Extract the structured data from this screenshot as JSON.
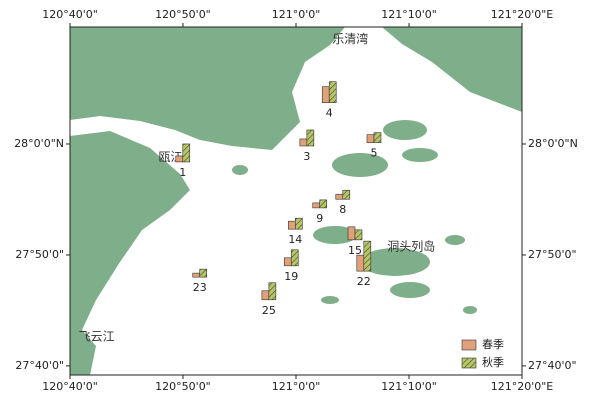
{
  "map": {
    "xlim": [
      120.6667,
      121.3333
    ],
    "ylim": [
      27.653,
      28.1757
    ],
    "xticks": [
      {
        "value": 120.6667,
        "label": "120°40'0\""
      },
      {
        "value": 120.8333,
        "label": "120°50'0\""
      },
      {
        "value": 121.0,
        "label": "121°0'0\""
      },
      {
        "value": 121.1667,
        "label": "121°10'0\""
      },
      {
        "value": 121.3333,
        "label": "121°20'0\"E"
      }
    ],
    "yticks": [
      {
        "value": 28.0,
        "label": "28°0'0\"N"
      },
      {
        "value": 27.8333,
        "label": "27°50'0\""
      },
      {
        "value": 27.6667,
        "label": "27°40'0\""
      }
    ],
    "place_names": [
      {
        "label": "乐清湾",
        "lon": 121.08,
        "lat": 28.157
      },
      {
        "label": "瓯江",
        "lon": 120.815,
        "lat": 27.98
      },
      {
        "label": "洞头列岛",
        "lon": 121.17,
        "lat": 27.845
      },
      {
        "label": "飞云江",
        "lon": 120.706,
        "lat": 27.71
      }
    ],
    "series": [
      {
        "name": "春季",
        "color": "#e0a07a"
      },
      {
        "name": "秋季",
        "color": "#b9c46a"
      }
    ],
    "stations": [
      {
        "label": "1",
        "lon": 120.833,
        "lat": 27.973,
        "values": [
          6,
          18
        ]
      },
      {
        "label": "3",
        "lon": 121.016,
        "lat": 27.997,
        "values": [
          7,
          16
        ]
      },
      {
        "label": "4",
        "lon": 121.049,
        "lat": 28.062,
        "values": [
          16,
          21
        ]
      },
      {
        "label": "5",
        "lon": 121.115,
        "lat": 28.002,
        "values": [
          8,
          10
        ]
      },
      {
        "label": "8",
        "lon": 121.069,
        "lat": 27.917,
        "values": [
          5,
          9
        ]
      },
      {
        "label": "9",
        "lon": 121.035,
        "lat": 27.904,
        "values": [
          5,
          8
        ]
      },
      {
        "label": "14",
        "lon": 120.999,
        "lat": 27.872,
        "values": [
          8,
          11
        ]
      },
      {
        "label": "15",
        "lon": 121.087,
        "lat": 27.856,
        "values": [
          13,
          10
        ]
      },
      {
        "label": "22",
        "lon": 121.1,
        "lat": 27.809,
        "values": [
          16,
          30
        ]
      },
      {
        "label": "19",
        "lon": 120.993,
        "lat": 27.817,
        "values": [
          8,
          16
        ]
      },
      {
        "label": "23",
        "lon": 120.858,
        "lat": 27.8,
        "values": [
          4,
          8
        ]
      },
      {
        "label": "25",
        "lon": 120.96,
        "lat": 27.766,
        "values": [
          9,
          17
        ]
      }
    ]
  }
}
